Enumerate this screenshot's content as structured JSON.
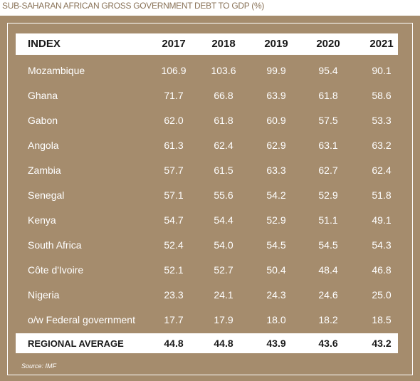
{
  "title": "SUB-SAHARAN AFRICAN GROSS GOVERNMENT DEBT TO GDP (%)",
  "header": {
    "index": "INDEX",
    "years": [
      "2017",
      "2018",
      "2019",
      "2020",
      "2021"
    ]
  },
  "rows": [
    {
      "name": "Mozambique",
      "values": [
        "106.9",
        "103.6",
        "99.9",
        "95.4",
        "90.1"
      ]
    },
    {
      "name": "Ghana",
      "values": [
        "71.7",
        "66.8",
        "63.9",
        "61.8",
        "58.6"
      ]
    },
    {
      "name": "Gabon",
      "values": [
        "62.0",
        "61.8",
        "60.9",
        "57.5",
        "53.3"
      ]
    },
    {
      "name": "Angola",
      "values": [
        "61.3",
        "62.4",
        "62.9",
        "63.1",
        "63.2"
      ]
    },
    {
      "name": "Zambia",
      "values": [
        "57.7",
        "61.5",
        "63.3",
        "62.7",
        "62.4"
      ]
    },
    {
      "name": "Senegal",
      "values": [
        "57.1",
        "55.6",
        "54.2",
        "52.9",
        "51.8"
      ]
    },
    {
      "name": "Kenya",
      "values": [
        "54.7",
        "54.4",
        "52.9",
        "51.1",
        "49.1"
      ]
    },
    {
      "name": "South Africa",
      "values": [
        "52.4",
        "54.0",
        "54.5",
        "54.5",
        "54.3"
      ]
    },
    {
      "name": "Côte d'Ivoire",
      "values": [
        "52.1",
        "52.7",
        "50.4",
        "48.4",
        "46.8"
      ]
    },
    {
      "name": "Nigeria",
      "values": [
        "23.3",
        "24.1",
        "24.3",
        "24.6",
        "25.0"
      ]
    },
    {
      "name": "o/w Federal government",
      "values": [
        "17.7",
        "17.9",
        "18.0",
        "18.2",
        "18.5"
      ]
    }
  ],
  "footer": {
    "name": "REGIONAL AVERAGE",
    "values": [
      "44.8",
      "44.8",
      "43.9",
      "43.6",
      "43.2"
    ]
  },
  "source": "Source: IMF",
  "colors": {
    "panel": "#a58c6d",
    "title": "#8a7358",
    "header_bg": "#ffffff",
    "body_text": "#ffffff"
  }
}
